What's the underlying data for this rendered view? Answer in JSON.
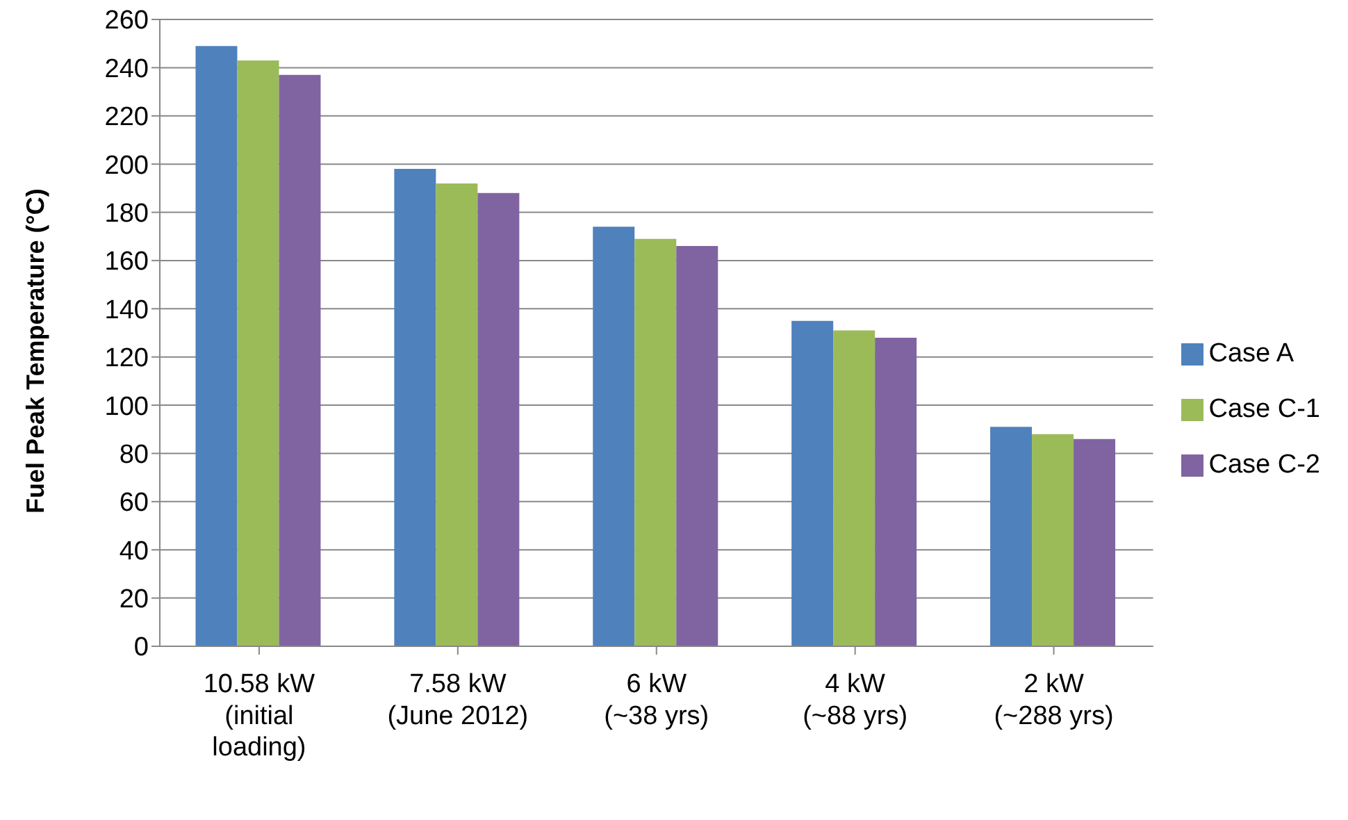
{
  "chart_data": {
    "type": "bar",
    "ylabel": "Fuel Peak Temperature (°C)",
    "categories": [
      "10.58 kW\n(initial\nloading)",
      "7.58 kW\n(June 2012)",
      "6 kW\n(~38 yrs)",
      "4 kW\n(~88 yrs)",
      "2 kW\n(~288 yrs)"
    ],
    "series": [
      {
        "name": "Case A",
        "color": "#4f81bd",
        "values": [
          249,
          198,
          174,
          135,
          91
        ]
      },
      {
        "name": "Case C-1",
        "color": "#9bbb59",
        "values": [
          243,
          192,
          169,
          131,
          88
        ]
      },
      {
        "name": "Case C-2",
        "color": "#8064a2",
        "values": [
          237,
          188,
          166,
          128,
          86
        ]
      }
    ],
    "ylim": [
      0,
      260
    ],
    "yticks": [
      0,
      20,
      40,
      60,
      80,
      100,
      120,
      140,
      160,
      180,
      200,
      220,
      240,
      260
    ],
    "grid": "y",
    "legend": "right"
  }
}
